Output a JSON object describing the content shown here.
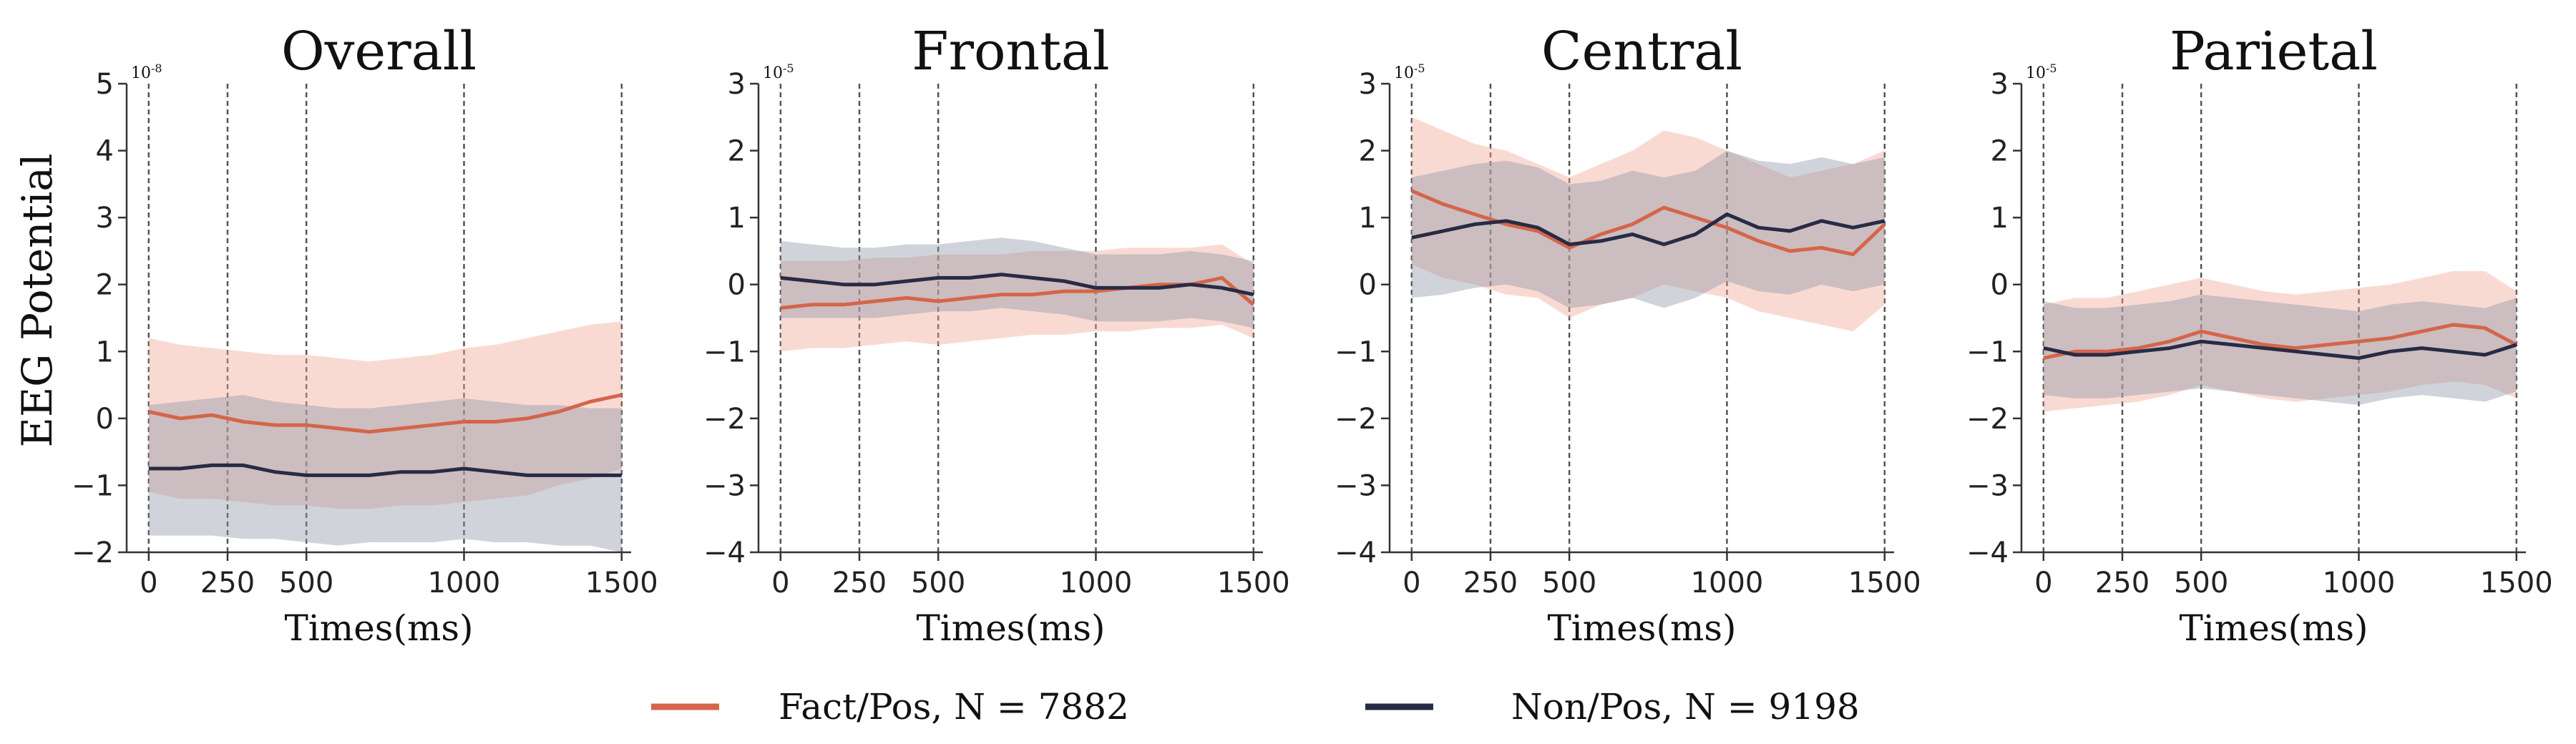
{
  "figure": {
    "ylabel": "EEG Potential",
    "legend": [
      {
        "label": "Fact/Pos, N = 7882",
        "color": "#d4654a"
      },
      {
        "label": "Non/Pos, N = 9198",
        "color": "#272b45"
      }
    ],
    "colors": {
      "fact_band": "#f1a895",
      "non_band": "#8f95a8",
      "vline": "#555555",
      "axis": "#333333"
    }
  },
  "chart_data": [
    {
      "type": "line",
      "title": "Overall",
      "xlabel": "Times(ms)",
      "ylabel": "EEG Potential",
      "exponent_label": "10-8",
      "xlim": [
        -70,
        1530
      ],
      "ylim": [
        -2,
        5
      ],
      "xticks": [
        0,
        250,
        500,
        1000,
        1500
      ],
      "yticks": [
        -2,
        -1,
        0,
        1,
        2,
        3,
        4,
        5
      ],
      "vlines": [
        0,
        250,
        500,
        1000,
        1500
      ],
      "x": [
        0,
        100,
        200,
        300,
        400,
        500,
        600,
        700,
        800,
        900,
        1000,
        1100,
        1200,
        1300,
        1400,
        1500
      ],
      "series": [
        {
          "name": "Fact/Pos, N = 7882",
          "values": [
            0.1,
            0.0,
            0.05,
            -0.05,
            -0.1,
            -0.1,
            -0.15,
            -0.2,
            -0.15,
            -0.1,
            -0.05,
            -0.05,
            0.0,
            0.1,
            0.25,
            0.35
          ],
          "lower": [
            -1.1,
            -1.2,
            -1.2,
            -1.25,
            -1.3,
            -1.3,
            -1.35,
            -1.35,
            -1.3,
            -1.3,
            -1.25,
            -1.2,
            -1.15,
            -1.0,
            -0.9,
            -0.75
          ],
          "upper": [
            1.2,
            1.1,
            1.05,
            1.0,
            0.95,
            0.95,
            0.9,
            0.85,
            0.9,
            0.95,
            1.05,
            1.1,
            1.2,
            1.3,
            1.4,
            1.45
          ]
        },
        {
          "name": "Non/Pos, N = 9198",
          "values": [
            -0.75,
            -0.75,
            -0.7,
            -0.7,
            -0.8,
            -0.85,
            -0.85,
            -0.85,
            -0.8,
            -0.8,
            -0.75,
            -0.8,
            -0.85,
            -0.85,
            -0.85,
            -0.85
          ],
          "lower": [
            -1.75,
            -1.75,
            -1.75,
            -1.8,
            -1.8,
            -1.85,
            -1.9,
            -1.85,
            -1.85,
            -1.85,
            -1.8,
            -1.85,
            -1.85,
            -1.9,
            -1.9,
            -2.0
          ],
          "upper": [
            0.2,
            0.25,
            0.3,
            0.35,
            0.25,
            0.2,
            0.15,
            0.15,
            0.2,
            0.25,
            0.3,
            0.25,
            0.2,
            0.2,
            0.15,
            0.15
          ]
        }
      ]
    },
    {
      "type": "line",
      "title": "Frontal",
      "xlabel": "Times(ms)",
      "ylabel": "",
      "exponent_label": "10-5",
      "xlim": [
        -70,
        1530
      ],
      "ylim": [
        -4,
        3
      ],
      "xticks": [
        0,
        250,
        500,
        1000,
        1500
      ],
      "yticks": [
        -4,
        -3,
        -2,
        -1,
        0,
        1,
        2,
        3
      ],
      "vlines": [
        0,
        250,
        500,
        1000,
        1500
      ],
      "x": [
        0,
        100,
        200,
        300,
        400,
        500,
        600,
        700,
        800,
        900,
        1000,
        1100,
        1200,
        1300,
        1400,
        1500
      ],
      "series": [
        {
          "name": "Fact/Pos, N = 7882",
          "values": [
            -0.35,
            -0.3,
            -0.3,
            -0.25,
            -0.2,
            -0.25,
            -0.2,
            -0.15,
            -0.15,
            -0.1,
            -0.1,
            -0.05,
            0.0,
            0.0,
            0.1,
            -0.3
          ],
          "lower": [
            -1.0,
            -0.95,
            -0.95,
            -0.9,
            -0.85,
            -0.9,
            -0.85,
            -0.8,
            -0.75,
            -0.75,
            -0.7,
            -0.7,
            -0.65,
            -0.65,
            -0.6,
            -0.8
          ],
          "upper": [
            0.35,
            0.35,
            0.35,
            0.4,
            0.4,
            0.45,
            0.45,
            0.45,
            0.5,
            0.5,
            0.5,
            0.55,
            0.55,
            0.55,
            0.6,
            0.3
          ]
        },
        {
          "name": "Non/Pos, N = 9198",
          "values": [
            0.1,
            0.05,
            0.0,
            0.0,
            0.05,
            0.1,
            0.1,
            0.15,
            0.1,
            0.05,
            -0.05,
            -0.05,
            -0.05,
            0.0,
            -0.05,
            -0.15
          ],
          "lower": [
            -0.5,
            -0.5,
            -0.5,
            -0.5,
            -0.45,
            -0.4,
            -0.4,
            -0.35,
            -0.4,
            -0.45,
            -0.55,
            -0.55,
            -0.55,
            -0.5,
            -0.55,
            -0.65
          ],
          "upper": [
            0.65,
            0.6,
            0.55,
            0.55,
            0.6,
            0.6,
            0.65,
            0.7,
            0.65,
            0.55,
            0.45,
            0.45,
            0.45,
            0.5,
            0.45,
            0.35
          ]
        }
      ]
    },
    {
      "type": "line",
      "title": "Central",
      "xlabel": "Times(ms)",
      "ylabel": "",
      "exponent_label": "10-5",
      "xlim": [
        -70,
        1530
      ],
      "ylim": [
        -4,
        3
      ],
      "xticks": [
        0,
        250,
        500,
        1000,
        1500
      ],
      "yticks": [
        -4,
        -3,
        -2,
        -1,
        0,
        1,
        2,
        3
      ],
      "vlines": [
        0,
        250,
        500,
        1000,
        1500
      ],
      "x": [
        0,
        100,
        200,
        300,
        400,
        500,
        600,
        700,
        800,
        900,
        1000,
        1100,
        1200,
        1300,
        1400,
        1500
      ],
      "series": [
        {
          "name": "Fact/Pos, N = 7882",
          "values": [
            1.4,
            1.2,
            1.05,
            0.9,
            0.8,
            0.55,
            0.75,
            0.9,
            1.15,
            1.0,
            0.85,
            0.65,
            0.5,
            0.55,
            0.45,
            0.9
          ],
          "lower": [
            0.3,
            0.1,
            0.0,
            -0.15,
            -0.2,
            -0.5,
            -0.3,
            -0.2,
            0.0,
            -0.1,
            -0.2,
            -0.4,
            -0.5,
            -0.6,
            -0.7,
            -0.3
          ],
          "upper": [
            2.5,
            2.3,
            2.1,
            2.0,
            1.8,
            1.6,
            1.8,
            2.0,
            2.3,
            2.2,
            2.0,
            1.8,
            1.6,
            1.7,
            1.8,
            2.0
          ]
        },
        {
          "name": "Non/Pos, N = 9198",
          "values": [
            0.7,
            0.8,
            0.9,
            0.95,
            0.85,
            0.6,
            0.65,
            0.75,
            0.6,
            0.75,
            1.05,
            0.85,
            0.8,
            0.95,
            0.85,
            0.95
          ],
          "lower": [
            -0.2,
            -0.15,
            -0.05,
            0.0,
            -0.1,
            -0.35,
            -0.3,
            -0.2,
            -0.35,
            -0.2,
            0.05,
            -0.1,
            -0.15,
            0.0,
            -0.1,
            0.0
          ],
          "upper": [
            1.6,
            1.7,
            1.8,
            1.85,
            1.75,
            1.5,
            1.55,
            1.7,
            1.6,
            1.7,
            2.0,
            1.85,
            1.8,
            1.9,
            1.8,
            1.9
          ]
        }
      ]
    },
    {
      "type": "line",
      "title": "Parietal",
      "xlabel": "Times(ms)",
      "ylabel": "",
      "exponent_label": "10-5",
      "xlim": [
        -70,
        1530
      ],
      "ylim": [
        -4,
        3
      ],
      "xticks": [
        0,
        250,
        500,
        1000,
        1500
      ],
      "yticks": [
        -4,
        -3,
        -2,
        -1,
        0,
        1,
        2,
        3
      ],
      "vlines": [
        0,
        250,
        500,
        1000,
        1500
      ],
      "x": [
        0,
        100,
        200,
        300,
        400,
        500,
        600,
        700,
        800,
        900,
        1000,
        1100,
        1200,
        1300,
        1400,
        1500
      ],
      "series": [
        {
          "name": "Fact/Pos, N = 7882",
          "values": [
            -1.1,
            -1.0,
            -1.0,
            -0.95,
            -0.85,
            -0.7,
            -0.8,
            -0.9,
            -0.95,
            -0.9,
            -0.85,
            -0.8,
            -0.7,
            -0.6,
            -0.65,
            -0.9
          ],
          "lower": [
            -1.9,
            -1.85,
            -1.8,
            -1.75,
            -1.65,
            -1.5,
            -1.6,
            -1.7,
            -1.75,
            -1.7,
            -1.65,
            -1.6,
            -1.5,
            -1.45,
            -1.5,
            -1.7
          ],
          "upper": [
            -0.3,
            -0.2,
            -0.2,
            -0.1,
            0.0,
            0.1,
            0.0,
            -0.1,
            -0.15,
            -0.1,
            -0.05,
            0.0,
            0.1,
            0.2,
            0.2,
            -0.1
          ]
        },
        {
          "name": "Non/Pos, N = 9198",
          "values": [
            -0.95,
            -1.05,
            -1.05,
            -1.0,
            -0.95,
            -0.85,
            -0.9,
            -0.95,
            -1.0,
            -1.05,
            -1.1,
            -1.0,
            -0.95,
            -1.0,
            -1.05,
            -0.9
          ],
          "lower": [
            -1.65,
            -1.7,
            -1.7,
            -1.65,
            -1.6,
            -1.55,
            -1.6,
            -1.65,
            -1.7,
            -1.75,
            -1.8,
            -1.7,
            -1.65,
            -1.7,
            -1.75,
            -1.6
          ],
          "upper": [
            -0.25,
            -0.35,
            -0.35,
            -0.3,
            -0.25,
            -0.15,
            -0.2,
            -0.25,
            -0.3,
            -0.35,
            -0.4,
            -0.3,
            -0.25,
            -0.3,
            -0.35,
            -0.2
          ]
        }
      ]
    }
  ]
}
